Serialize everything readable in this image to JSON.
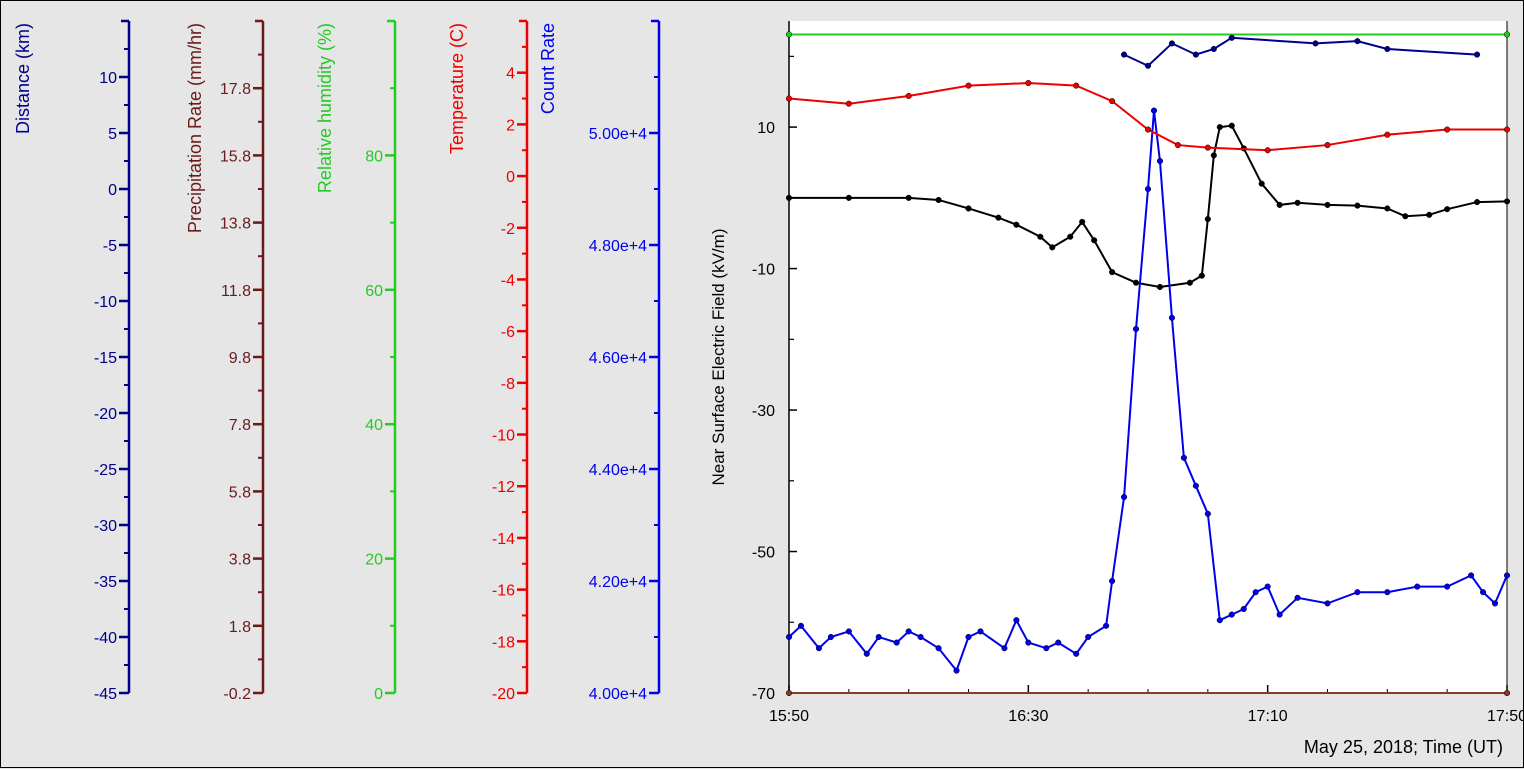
{
  "chart_data": {
    "type": "line",
    "xlabel": "May 25, 2018; Time (UT)",
    "x_ticks": [
      "15:50",
      "16:30",
      "17:10",
      "17:50"
    ],
    "x_range": [
      "15:50",
      "17:50"
    ],
    "axes": [
      {
        "key": "distance",
        "label": "Distance (km)",
        "color": "#00008b",
        "range": [
          -45,
          15
        ],
        "ticks": [
          "-45",
          "-40",
          "-35",
          "-30",
          "-25",
          "-20",
          "-15",
          "-10",
          "-5",
          "0",
          "5",
          "10"
        ]
      },
      {
        "key": "precip",
        "label": "Precipitation Rate (mm/hr)",
        "color": "#6b1a1a",
        "range": [
          -0.2,
          19.8
        ],
        "ticks": [
          "-0.2",
          "1.8",
          "3.8",
          "5.8",
          "7.8",
          "9.8",
          "11.8",
          "13.8",
          "15.8",
          "17.8"
        ]
      },
      {
        "key": "humidity",
        "label": "Relative humidity (%)",
        "color": "#22cc22",
        "range": [
          0,
          100
        ],
        "ticks": [
          "0",
          "20",
          "40",
          "60",
          "80"
        ]
      },
      {
        "key": "temp",
        "label": "Temperature (C)",
        "color": "#ee0000",
        "range": [
          -20,
          6
        ],
        "ticks": [
          "-20",
          "-18",
          "-16",
          "-14",
          "-12",
          "-10",
          "-8",
          "-6",
          "-4",
          "-2",
          "0",
          "2",
          "4"
        ]
      },
      {
        "key": "count",
        "label": "Count Rate",
        "color": "#0000ee",
        "range": [
          40000,
          52000
        ],
        "ticks": [
          "4.00e+4",
          "4.20e+4",
          "4.40e+4",
          "4.60e+4",
          "4.80e+4",
          "5.00e+4"
        ]
      }
    ],
    "main_axis": {
      "label": "Near Surface Electric Field (kV/m)",
      "range": [
        -70,
        25
      ],
      "ticks": [
        "-70",
        "-50",
        "-30",
        "-10",
        "10"
      ]
    },
    "series": [
      {
        "axis": "main",
        "color": "#000000",
        "points": [
          [
            "15:50",
            0
          ],
          [
            "16:00",
            0
          ],
          [
            "16:10",
            0
          ],
          [
            "16:15",
            -0.3
          ],
          [
            "16:20",
            -1.5
          ],
          [
            "16:25",
            -2.8
          ],
          [
            "16:28",
            -3.8
          ],
          [
            "16:32",
            -5.5
          ],
          [
            "16:34",
            -7
          ],
          [
            "16:37",
            -5.5
          ],
          [
            "16:39",
            -3.4
          ],
          [
            "16:41",
            -6
          ],
          [
            "16:44",
            -10.5
          ],
          [
            "16:48",
            -12
          ],
          [
            "16:52",
            -12.6
          ],
          [
            "16:57",
            -12
          ],
          [
            "16:59",
            -11
          ],
          [
            "17:00",
            -3
          ],
          [
            "17:01",
            6
          ],
          [
            "17:02",
            10
          ],
          [
            "17:04",
            10.2
          ],
          [
            "17:06",
            7
          ],
          [
            "17:09",
            2
          ],
          [
            "17:12",
            -1
          ],
          [
            "17:15",
            -0.7
          ],
          [
            "17:20",
            -1
          ],
          [
            "17:25",
            -1.1
          ],
          [
            "17:30",
            -1.5
          ],
          [
            "17:33",
            -2.6
          ],
          [
            "17:37",
            -2.4
          ],
          [
            "17:40",
            -1.6
          ],
          [
            "17:45",
            -0.6
          ],
          [
            "17:50",
            -0.5
          ]
        ]
      },
      {
        "axis": "count",
        "color": "#0000ee",
        "points": [
          [
            "15:50",
            41000
          ],
          [
            "15:52",
            41200
          ],
          [
            "15:55",
            40800
          ],
          [
            "15:57",
            41000
          ],
          [
            "16:00",
            41100
          ],
          [
            "16:03",
            40700
          ],
          [
            "16:05",
            41000
          ],
          [
            "16:08",
            40900
          ],
          [
            "16:10",
            41100
          ],
          [
            "16:12",
            41000
          ],
          [
            "16:15",
            40800
          ],
          [
            "16:18",
            40400
          ],
          [
            "16:20",
            41000
          ],
          [
            "16:22",
            41100
          ],
          [
            "16:26",
            40800
          ],
          [
            "16:28",
            41300
          ],
          [
            "16:30",
            40900
          ],
          [
            "16:33",
            40800
          ],
          [
            "16:35",
            40900
          ],
          [
            "16:38",
            40700
          ],
          [
            "16:40",
            41000
          ],
          [
            "16:43",
            41200
          ],
          [
            "16:44",
            42000
          ],
          [
            "16:46",
            43500
          ],
          [
            "16:48",
            46500
          ],
          [
            "16:50",
            49000
          ],
          [
            "16:51",
            50400
          ],
          [
            "16:52",
            49500
          ],
          [
            "16:54",
            46700
          ],
          [
            "16:56",
            44200
          ],
          [
            "16:58",
            43700
          ],
          [
            "17:00",
            43200
          ],
          [
            "17:02",
            41300
          ],
          [
            "17:04",
            41400
          ],
          [
            "17:06",
            41500
          ],
          [
            "17:08",
            41800
          ],
          [
            "17:10",
            41900
          ],
          [
            "17:12",
            41400
          ],
          [
            "17:15",
            41700
          ],
          [
            "17:20",
            41600
          ],
          [
            "17:25",
            41800
          ],
          [
            "17:30",
            41800
          ],
          [
            "17:35",
            41900
          ],
          [
            "17:40",
            41900
          ],
          [
            "17:44",
            42100
          ],
          [
            "17:46",
            41800
          ],
          [
            "17:48",
            41600
          ],
          [
            "17:50",
            42100
          ]
        ]
      },
      {
        "axis": "temp",
        "color": "#ee0000",
        "points": [
          [
            "15:50",
            3
          ],
          [
            "16:00",
            2.8
          ],
          [
            "16:10",
            3.1
          ],
          [
            "16:20",
            3.5
          ],
          [
            "16:30",
            3.6
          ],
          [
            "16:38",
            3.5
          ],
          [
            "16:44",
            2.9
          ],
          [
            "16:50",
            1.8
          ],
          [
            "16:55",
            1.2
          ],
          [
            "17:00",
            1.1
          ],
          [
            "17:10",
            1
          ],
          [
            "17:20",
            1.2
          ],
          [
            "17:30",
            1.6
          ],
          [
            "17:40",
            1.8
          ],
          [
            "17:50",
            1.8
          ]
        ]
      },
      {
        "axis": "humidity",
        "color": "#22cc22",
        "points": [
          [
            "15:50",
            98
          ],
          [
            "17:50",
            98
          ]
        ]
      },
      {
        "axis": "precip",
        "color": "#8b3a2a",
        "points": [
          [
            "15:50",
            -0.2
          ],
          [
            "17:50",
            -0.2
          ]
        ]
      },
      {
        "axis": "distance",
        "color": "#00008b",
        "points": [
          [
            "16:46",
            12
          ],
          [
            "16:50",
            11
          ],
          [
            "16:54",
            13
          ],
          [
            "16:58",
            12
          ],
          [
            "17:01",
            12.5
          ],
          [
            "17:04",
            13.5
          ],
          [
            "17:18",
            13
          ],
          [
            "17:25",
            13.2
          ],
          [
            "17:30",
            12.5
          ],
          [
            "17:45",
            12
          ]
        ]
      }
    ]
  }
}
